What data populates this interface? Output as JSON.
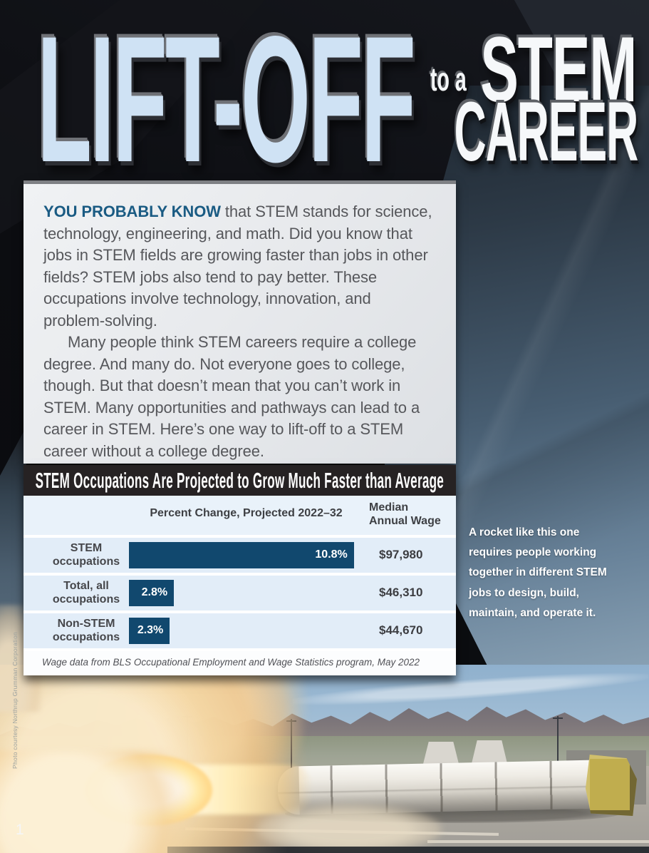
{
  "title": {
    "liftoff": "LIFT-OFF",
    "connector": "to a",
    "stem": "STEM",
    "career": "CAREER"
  },
  "intro": {
    "lead_in": "YOU PROBABLY KNOW",
    "paragraph1_rest": " that STEM stands for science, technology, engineering, and math. Did you know that jobs in STEM fields are growing faster than jobs in other fields? STEM jobs also tend to pay better. These occupations involve technology, innovation, and problem-solving.",
    "paragraph2": "Many people think STEM careers require a college degree. And many do. Not everyone goes to college, though. But that doesn’t mean that you can’t work in STEM. Many opportunities and pathways can lead to a career in STEM. Here’s one way to lift-off to a STEM career without a college degree."
  },
  "chart_data": {
    "type": "bar",
    "orientation": "horizontal",
    "title": "STEM Occupations Are Projected to Grow Much Faster than Average",
    "column_headers": {
      "bars": "Percent Change, Projected 2022–32",
      "wage": "Median Annual Wage"
    },
    "categories": [
      "STEM occupations",
      "Total, all occupations",
      "Non-STEM occupations"
    ],
    "series": [
      {
        "name": "Percent Change, Projected 2022–32",
        "unit": "%",
        "values": [
          10.8,
          2.8,
          2.3
        ],
        "labels": [
          "10.8%",
          "2.8%",
          "2.3%"
        ]
      },
      {
        "name": "Median Annual Wage",
        "unit": "USD",
        "values": [
          97980,
          46310,
          44670
        ],
        "labels": [
          "$97,980",
          "$46,310",
          "$44,670"
        ]
      }
    ],
    "footnote": "Wage data from BLS Occupational Employment and Wage Statistics program, May 2022",
    "bar_color": "#11486e",
    "bar_width_pct": [
      92.6,
      18.5,
      16.8
    ],
    "legend": false,
    "grid": false
  },
  "photo_caption": "A rocket like this one requires people working together in different STEM jobs to design, build, maintain, and operate it.",
  "photo_credit": "Photo courtesy Northrup Grumman Corporation",
  "page_number": "1",
  "colors": {
    "accent_text": "#1a5b83",
    "title_blue": "#cfe2f4",
    "bar": "#11486e",
    "chart_header_bg": "#262223",
    "row_bg": "#e2edf8"
  }
}
